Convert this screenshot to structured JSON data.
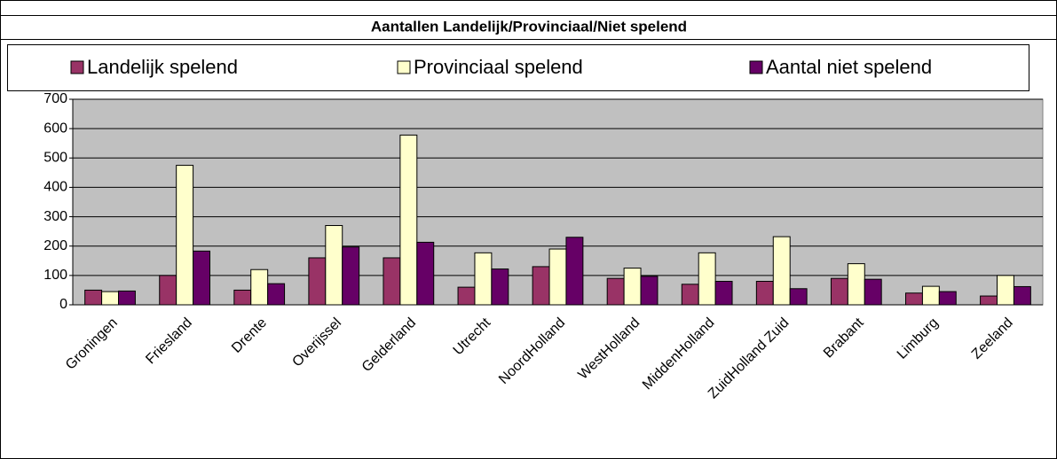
{
  "chart_data": {
    "type": "bar",
    "title": "Aantallen Landelijk/Provinciaal/Niet spelend",
    "categories": [
      "Groningen",
      "Friesland",
      "Drente",
      "Overijssel",
      "Gelderland",
      "Utrecht",
      "NoordHolland",
      "WestHolland",
      "MiddenHolland",
      "ZuidHolland Zuid",
      "Brabant",
      "Limburg",
      "Zeeland"
    ],
    "series": [
      {
        "name": "Landelijk spelend",
        "color": "#993366",
        "values": [
          50,
          100,
          50,
          160,
          160,
          60,
          130,
          90,
          70,
          80,
          90,
          40,
          30
        ]
      },
      {
        "name": "Provinciaal spelend",
        "color": "#ffffcc",
        "values": [
          45,
          475,
          120,
          270,
          578,
          177,
          190,
          125,
          177,
          232,
          140,
          63,
          100
        ]
      },
      {
        "name": "Aantal niet spelend",
        "color": "#660066",
        "values": [
          47,
          183,
          72,
          197,
          213,
          122,
          230,
          97,
          80,
          55,
          87,
          45,
          62
        ]
      }
    ],
    "ylim": [
      0,
      700
    ],
    "yticks": [
      0,
      100,
      200,
      300,
      400,
      500,
      600,
      700
    ],
    "grid": true,
    "legend": "top",
    "plot_background": "#c0c0c0"
  }
}
